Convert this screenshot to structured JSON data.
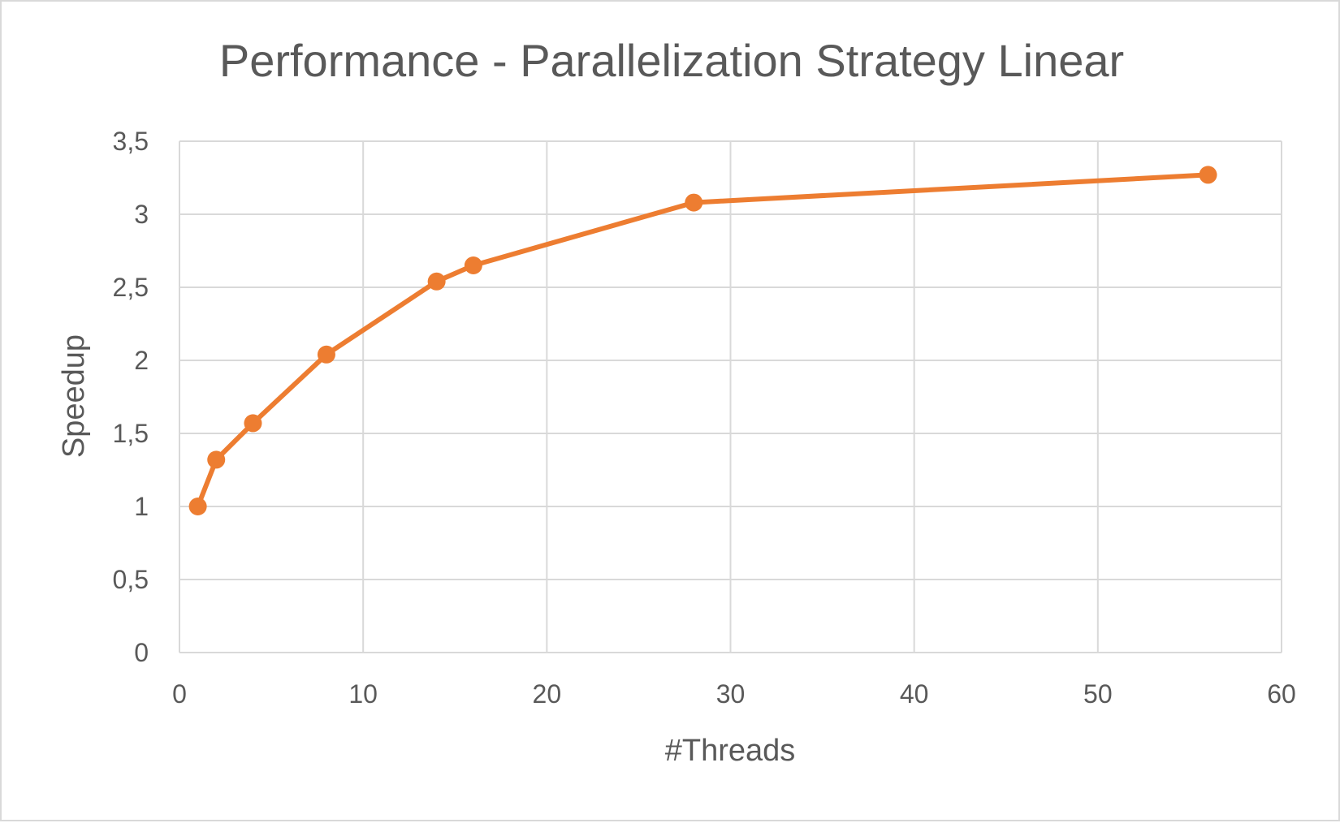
{
  "chart_data": {
    "type": "line",
    "title": "Performance - Parallelization Strategy Linear",
    "xlabel": "#Threads",
    "ylabel": "Speedup",
    "xlim": [
      0,
      60
    ],
    "ylim": [
      0,
      3.5
    ],
    "x_ticks": [
      0,
      10,
      20,
      30,
      40,
      50,
      60
    ],
    "x_tick_labels": [
      "0",
      "10",
      "20",
      "30",
      "40",
      "50",
      "60"
    ],
    "y_ticks": [
      0,
      0.5,
      1,
      1.5,
      2,
      2.5,
      3,
      3.5
    ],
    "y_tick_labels": [
      "0",
      "0,5",
      "1",
      "1,5",
      "2",
      "2,5",
      "3",
      "3,5"
    ],
    "grid": true,
    "legend": "none",
    "series": [
      {
        "color": "#ed7d31",
        "x": [
          1,
          2,
          4,
          8,
          14,
          16,
          28,
          56
        ],
        "y": [
          1.0,
          1.32,
          1.57,
          2.04,
          2.54,
          2.65,
          3.08,
          3.27
        ]
      }
    ]
  },
  "colors": {
    "grid": "#d9d9d9",
    "text": "#595959",
    "series": "#ed7d31"
  }
}
